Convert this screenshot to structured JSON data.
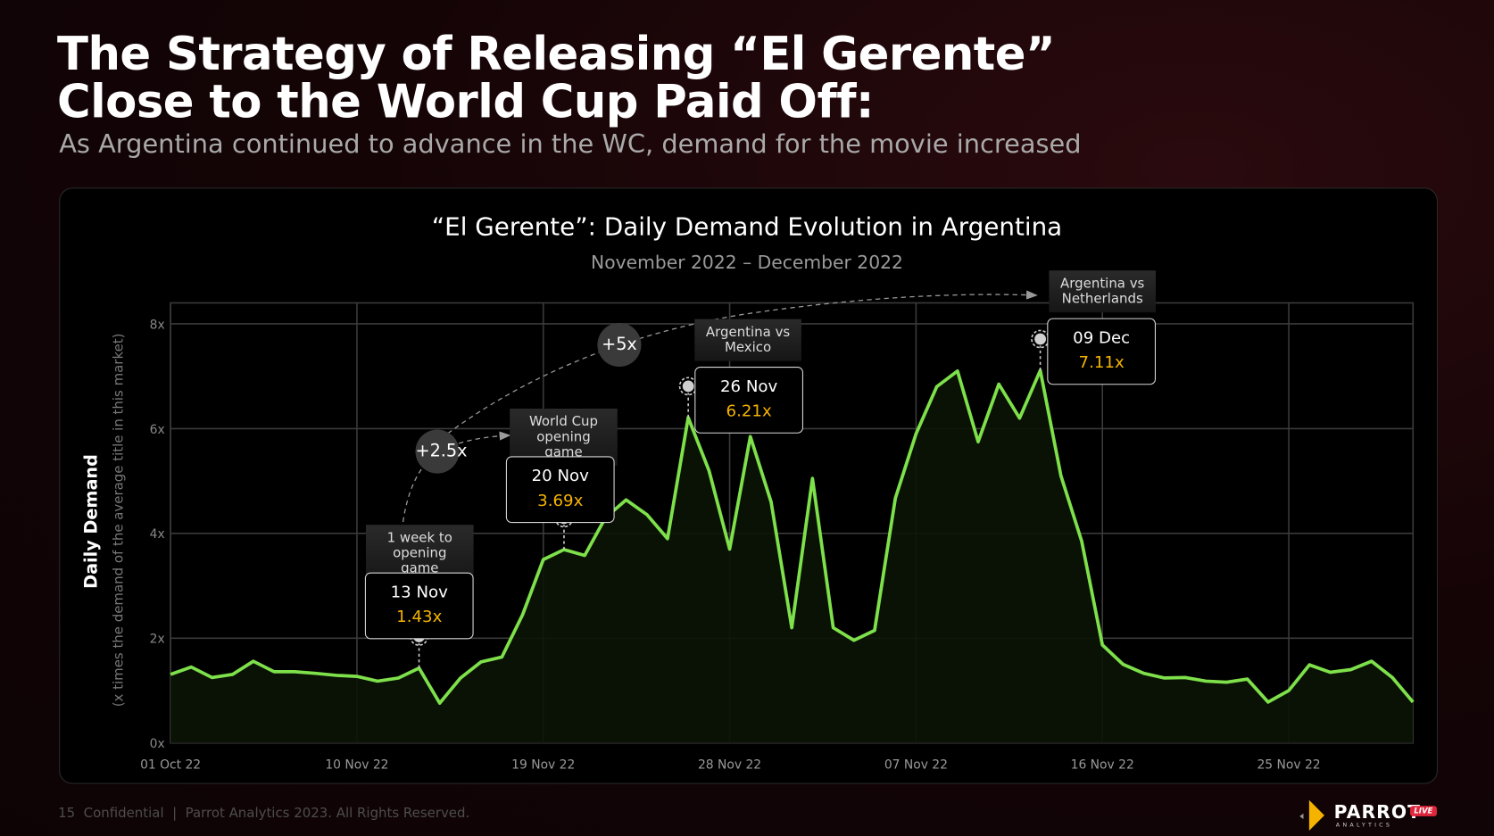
{
  "header": {
    "title_line1": "The Strategy of Releasing “El Gerente”",
    "title_line2": "Close to the World Cup Paid Off:",
    "subtitle": "As Argentina continued to advance in the WC, demand for the movie increased"
  },
  "chart_data": {
    "type": "area",
    "title": "“El Gerente”: Daily Demand Evolution in Argentina",
    "subtitle": "November 2022 – December 2022",
    "ylabel": "Daily Demand",
    "ylabel_sub": "(x times the demand of the average title  in this market)",
    "ylim": [
      0,
      8.5
    ],
    "yticks": [
      "0x",
      "2x",
      "4x",
      "6x",
      "8x"
    ],
    "xtick_labels": [
      "01 Oct 22",
      "10 Nov 22",
      "19 Nov 22",
      "28 Nov 22",
      "07 Nov 22",
      "16 Nov 22",
      "25 Nov 22"
    ],
    "grid": true,
    "line_color": "#7ee04a",
    "values": [
      1.31,
      1.45,
      1.25,
      1.31,
      1.56,
      1.36,
      1.36,
      1.33,
      1.29,
      1.27,
      1.18,
      1.24,
      1.43,
      0.76,
      1.24,
      1.55,
      1.64,
      2.45,
      3.5,
      3.69,
      3.58,
      4.3,
      4.64,
      4.36,
      3.9,
      6.21,
      5.2,
      3.7,
      5.85,
      4.6,
      2.2,
      5.05,
      2.2,
      1.96,
      2.15,
      4.67,
      5.9,
      6.8,
      7.1,
      5.75,
      6.85,
      6.2,
      7.11,
      5.1,
      3.85,
      1.87,
      1.5,
      1.33,
      1.24,
      1.25,
      1.18,
      1.16,
      1.22,
      0.78,
      1.0,
      1.49,
      1.35,
      1.4,
      1.56,
      1.25,
      0.78
    ],
    "annotations": [
      {
        "label": "1 week to opening game",
        "date": "13 Nov",
        "value": "1.43x",
        "index": 12
      },
      {
        "label": "World Cup opening game",
        "date": "20 Nov",
        "value": "3.69x",
        "index": 19
      },
      {
        "label": "Argentina vs Mexico",
        "date": "26 Nov",
        "value": "6.21x",
        "index": 25
      },
      {
        "label": "Argentina vs Netherlands",
        "date": "09 Dec",
        "value": "7.11x",
        "index": 42
      }
    ],
    "growth_bubbles": [
      "+2.5x",
      "+5x"
    ],
    "value_color": "#f5b300"
  },
  "footer": {
    "text": "15  Confidential  |  Parrot Analytics 2023. All Rights Reserved."
  },
  "logo": {
    "name": "PARROT",
    "sub": "ANALYTICS",
    "badge": "LIVE"
  }
}
